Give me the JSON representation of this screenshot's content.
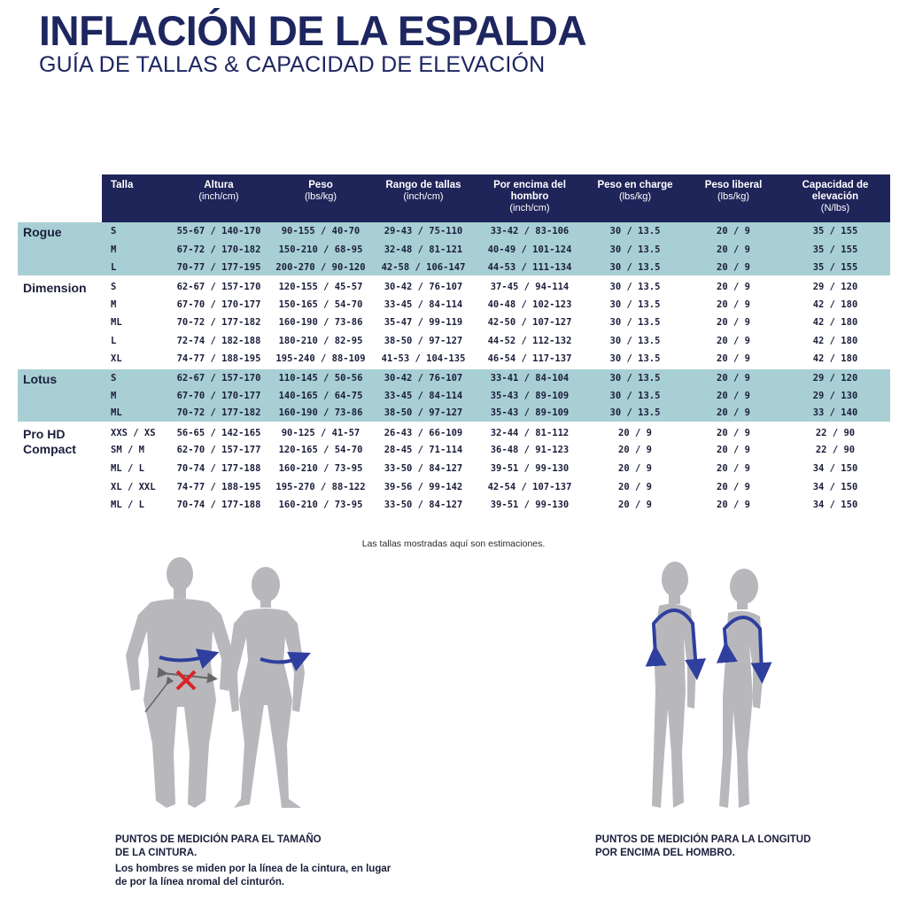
{
  "title": "INFLACIÓN DE LA ESPALDA",
  "subtitle": "GUÍA DE TALLAS & CAPACIDAD DE ELEVACIÓN",
  "table": {
    "headers": [
      {
        "label": "Talla",
        "unit": ""
      },
      {
        "label": "Altura",
        "unit": "(inch/cm)"
      },
      {
        "label": "Peso",
        "unit": "(lbs/kg)"
      },
      {
        "label": "Rango de tallas",
        "unit": "(inch/cm)"
      },
      {
        "label": "Por encima del hombro",
        "unit": "(inch/cm)"
      },
      {
        "label": "Peso en charge",
        "unit": "(lbs/kg)"
      },
      {
        "label": "Peso liberal",
        "unit": "(lbs/kg)"
      },
      {
        "label": "Capacidad de elevación",
        "unit": "(N/lbs)"
      }
    ],
    "groups": [
      {
        "product": "Rogue",
        "shaded": true,
        "rows": [
          [
            "S",
            "55-67 / 140-170",
            "90-155 / 40-70",
            "29-43 / 75-110",
            "33-42 / 83-106",
            "30 / 13.5",
            "20 / 9",
            "35 / 155"
          ],
          [
            "M",
            "67-72 / 170-182",
            "150-210 / 68-95",
            "32-48 / 81-121",
            "40-49 / 101-124",
            "30 / 13.5",
            "20 / 9",
            "35 / 155"
          ],
          [
            "L",
            "70-77 / 177-195",
            "200-270 / 90-120",
            "42-58 / 106-147",
            "44-53 / 111-134",
            "30 / 13.5",
            "20 / 9",
            "35 / 155"
          ]
        ]
      },
      {
        "product": "Dimension",
        "shaded": false,
        "rows": [
          [
            "S",
            "62-67 / 157-170",
            "120-155 / 45-57",
            "30-42 / 76-107",
            "37-45 / 94-114",
            "30 / 13.5",
            "20 / 9",
            "29 / 120"
          ],
          [
            "M",
            "67-70 / 170-177",
            "150-165 / 54-70",
            "33-45 / 84-114",
            "40-48 / 102-123",
            "30 / 13.5",
            "20 / 9",
            "42 / 180"
          ],
          [
            "ML",
            "70-72 / 177-182",
            "160-190 / 73-86",
            "35-47 / 99-119",
            "42-50 / 107-127",
            "30 / 13.5",
            "20 / 9",
            "42 / 180"
          ],
          [
            "L",
            "72-74 / 182-188",
            "180-210 / 82-95",
            "38-50 / 97-127",
            "44-52 / 112-132",
            "30 / 13.5",
            "20 / 9",
            "42 / 180"
          ],
          [
            "XL",
            "74-77 / 188-195",
            "195-240 / 88-109",
            "41-53 / 104-135",
            "46-54 / 117-137",
            "30 / 13.5",
            "20 / 9",
            "42 / 180"
          ]
        ]
      },
      {
        "product": "Lotus",
        "shaded": true,
        "rows": [
          [
            "S",
            "62-67 / 157-170",
            "110-145 / 50-56",
            "30-42 / 76-107",
            "33-41 / 84-104",
            "30 / 13.5",
            "20 / 9",
            "29 / 120"
          ],
          [
            "M",
            "67-70 / 170-177",
            "140-165 / 64-75",
            "33-45 / 84-114",
            "35-43 / 89-109",
            "30 / 13.5",
            "20 / 9",
            "29 / 130"
          ],
          [
            "ML",
            "70-72 / 177-182",
            "160-190 / 73-86",
            "38-50 / 97-127",
            "35-43 / 89-109",
            "30 / 13.5",
            "20 / 9",
            "33 / 140"
          ]
        ]
      },
      {
        "product": "Pro HD Compact",
        "shaded": false,
        "rows": [
          [
            "XXS / XS",
            "56-65 / 142-165",
            "90-125 / 41-57",
            "26-43 / 66-109",
            "32-44 / 81-112",
            "20 / 9",
            "20 / 9",
            "22 / 90"
          ],
          [
            "SM / M",
            "62-70 / 157-177",
            "120-165 / 54-70",
            "28-45 / 71-114",
            "36-48 / 91-123",
            "20 / 9",
            "20 / 9",
            "22 / 90"
          ],
          [
            "ML / L",
            "70-74 / 177-188",
            "160-210 / 73-95",
            "33-50 / 84-127",
            "39-51 / 99-130",
            "20 / 9",
            "20 / 9",
            "34 / 150"
          ],
          [
            "XL / XXL",
            "74-77 / 188-195",
            "195-270 / 88-122",
            "39-56 / 99-142",
            "42-54 / 107-137",
            "20 / 9",
            "20 / 9",
            "34 / 150"
          ],
          [
            "ML / L",
            "70-74 / 177-188",
            "160-210 / 73-95",
            "33-50 / 84-127",
            "39-51 / 99-130",
            "20 / 9",
            "20 / 9",
            "34 / 150"
          ]
        ]
      }
    ]
  },
  "note": "Las tallas mostradas aquí son estimaciones.",
  "colors": {
    "header_bg": "#1f2459",
    "shade": "#a8cfd4",
    "title": "#1e2660",
    "figure": "#b8b8bc",
    "arrow": "#2f3f9e",
    "cross": "#d9232b"
  },
  "captions": {
    "waist_title_1": "PUNTOS DE MEDICIÓN PARA EL TAMAÑO",
    "waist_title_2": "DE LA CINTURA.",
    "waist_body_1": "Los hombres se miden por la línea de la cintura, en lugar",
    "waist_body_2": "de por la línea nromal del cinturón.",
    "shoulder_title_1": "PUNTOS DE MEDICIÓN PARA LA LONGITUD",
    "shoulder_title_2": "POR ENCIMA DEL HOMBRO."
  }
}
